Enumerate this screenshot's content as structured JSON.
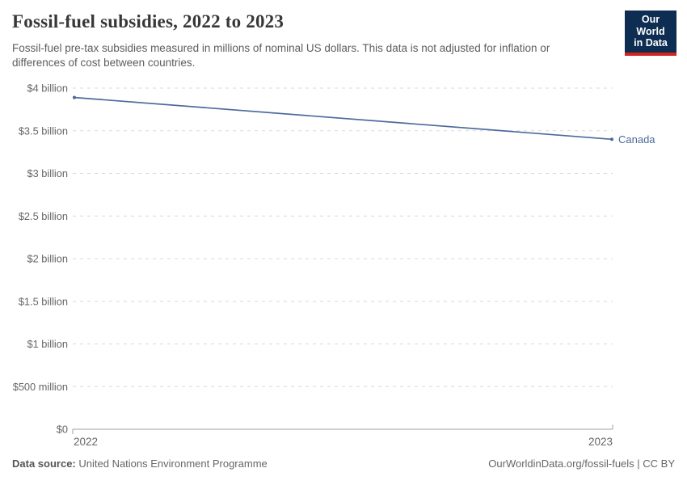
{
  "header": {
    "title": "Fossil-fuel subsidies, 2022 to 2023",
    "subtitle": "Fossil-fuel pre-tax subsidies measured in millions of nominal US dollars. This data is not adjusted for inflation or differences of cost between countries.",
    "logo": {
      "line1": "Our World",
      "line2": "in Data"
    }
  },
  "chart_data": {
    "type": "line",
    "title": "Fossil-fuel subsidies, 2022 to 2023",
    "x": [
      2022,
      2023
    ],
    "xtick_labels": [
      "2022",
      "2023"
    ],
    "series": [
      {
        "name": "Canada",
        "values": [
          3890,
          3400
        ],
        "unit": "million US$",
        "color": "#4c6a9c"
      }
    ],
    "ylim": [
      0,
      4000
    ],
    "yticks": [
      {
        "value": 0,
        "label": "$0"
      },
      {
        "value": 500,
        "label": "$500 million"
      },
      {
        "value": 1000,
        "label": "$1 billion"
      },
      {
        "value": 1500,
        "label": "$1.5 billion"
      },
      {
        "value": 2000,
        "label": "$2 billion"
      },
      {
        "value": 2500,
        "label": "$2.5 billion"
      },
      {
        "value": 3000,
        "label": "$3 billion"
      },
      {
        "value": 3500,
        "label": "$3.5 billion"
      },
      {
        "value": 4000,
        "label": "$4 billion"
      }
    ],
    "grid": "horizontal-dashed",
    "legend": "end-of-line-label"
  },
  "footer": {
    "source_label": "Data source:",
    "source_value": "United Nations Environment Programme",
    "attribution": "OurWorldinData.org/fossil-fuels | CC BY"
  },
  "colors": {
    "line": "#4c6a9c",
    "grid": "#d8d8d8",
    "axis": "#a0a0a0",
    "tick_text": "#666666",
    "logo_bg": "#0d2d52",
    "logo_stripe": "#d2231e"
  }
}
